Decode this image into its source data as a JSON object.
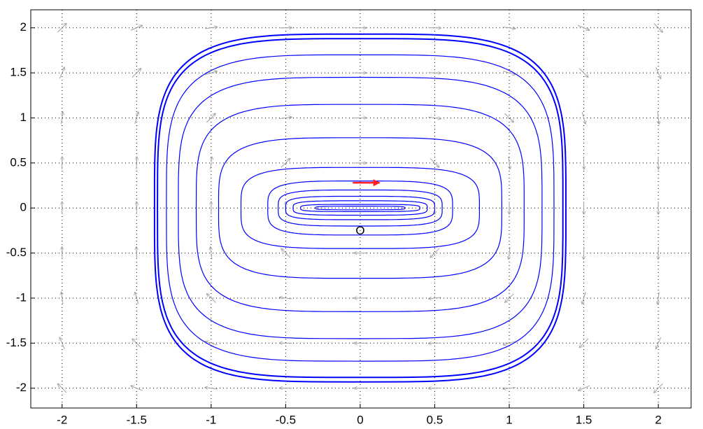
{
  "chart_data": {
    "type": "phase",
    "xlim": [
      -2.21,
      2.22
    ],
    "ylim": [
      -2.22,
      2.2
    ],
    "xticks": [
      -2,
      -1.5,
      -1,
      -0.5,
      0,
      0.5,
      1,
      1.5,
      2
    ],
    "yticks": [
      -2,
      -1.5,
      -1,
      -0.5,
      0,
      0.5,
      1,
      1.5,
      2
    ],
    "grid": true,
    "field": {
      "color": "#a0a0a0",
      "x": [
        -2,
        -1.5,
        -1,
        -0.5,
        0,
        0.5,
        1,
        1.5,
        2
      ],
      "y": [
        -2,
        -1.5,
        -1,
        -0.5,
        0,
        0.5,
        1,
        1.5,
        2
      ],
      "u": [
        [
          -0.71,
          -0.92,
          -0.99,
          -1,
          -1,
          -1,
          -0.99,
          -0.92,
          -0.71
        ],
        [
          -0.39,
          -0.71,
          -0.96,
          -1,
          -1,
          -1,
          -0.96,
          -0.71,
          -0.39
        ],
        [
          -0.12,
          -0.28,
          -0.71,
          -0.99,
          -1,
          -0.99,
          -0.71,
          -0.28,
          -0.12
        ],
        [
          -0.02,
          -0.04,
          -0.12,
          -0.71,
          -1,
          -0.71,
          -0.12,
          -0.04,
          -0.02
        ],
        [
          0,
          0,
          0,
          0,
          0,
          0,
          0,
          0,
          0
        ],
        [
          0.02,
          0.04,
          0.12,
          0.71,
          1,
          0.71,
          0.12,
          0.04,
          0.02
        ],
        [
          0.12,
          0.28,
          0.71,
          0.99,
          1,
          0.99,
          0.71,
          0.28,
          0.12
        ],
        [
          0.39,
          0.71,
          0.96,
          1,
          1,
          1,
          0.96,
          0.71,
          0.39
        ],
        [
          0.71,
          0.92,
          0.99,
          1,
          1,
          1,
          0.99,
          0.92,
          0.71
        ]
      ],
      "v": [
        [
          0.71,
          0.39,
          0.12,
          0.02,
          0,
          -0.02,
          -0.12,
          -0.39,
          -0.71
        ],
        [
          0.92,
          0.71,
          0.28,
          0.04,
          0,
          -0.04,
          -0.28,
          -0.71,
          -0.92
        ],
        [
          0.99,
          0.96,
          0.71,
          0.12,
          0,
          -0.12,
          -0.71,
          -0.96,
          -0.99
        ],
        [
          1,
          1,
          0.99,
          0.71,
          0,
          -0.71,
          -0.99,
          -1,
          -1
        ],
        [
          1,
          1,
          1,
          1,
          0,
          -1,
          -1,
          -1,
          -1
        ],
        [
          1,
          1,
          0.99,
          0.71,
          0,
          -0.71,
          -0.99,
          -1,
          -1
        ],
        [
          0.99,
          0.96,
          0.71,
          0.12,
          0,
          -0.12,
          -0.71,
          -0.96,
          -0.99
        ],
        [
          0.92,
          0.71,
          0.28,
          0.04,
          0,
          -0.04,
          -0.28,
          -0.71,
          -0.92
        ],
        [
          0.71,
          0.39,
          0.12,
          0.02,
          0,
          -0.02,
          -0.12,
          -0.39,
          -0.71
        ]
      ]
    },
    "orbit_color": "#0000ff",
    "orbits": [
      {
        "rx": 0.3,
        "ry": 0.02
      },
      {
        "rx": 0.4,
        "ry": 0.04
      },
      {
        "rx": 0.45,
        "ry": 0.08
      },
      {
        "rx": 0.5,
        "ry": 0.13
      },
      {
        "rx": 0.55,
        "ry": 0.2
      },
      {
        "rx": 0.62,
        "ry": 0.3
      },
      {
        "rx": 0.8,
        "ry": 0.45
      },
      {
        "rx": 0.95,
        "ry": 0.78
      },
      {
        "rx": 1.1,
        "ry": 1.15
      },
      {
        "rx": 1.22,
        "ry": 1.45
      },
      {
        "rx": 1.3,
        "ry": 1.7
      },
      {
        "rx": 1.36,
        "ry": 1.88
      },
      {
        "rx": 1.38,
        "ry": 1.93
      }
    ],
    "start_arrow": {
      "x": [
        -0.05,
        0.13
      ],
      "y": [
        0.28,
        0.28
      ],
      "color": "#ff2020"
    },
    "annotation": {
      "text": "O",
      "x": 0,
      "y": -0.26
    }
  }
}
